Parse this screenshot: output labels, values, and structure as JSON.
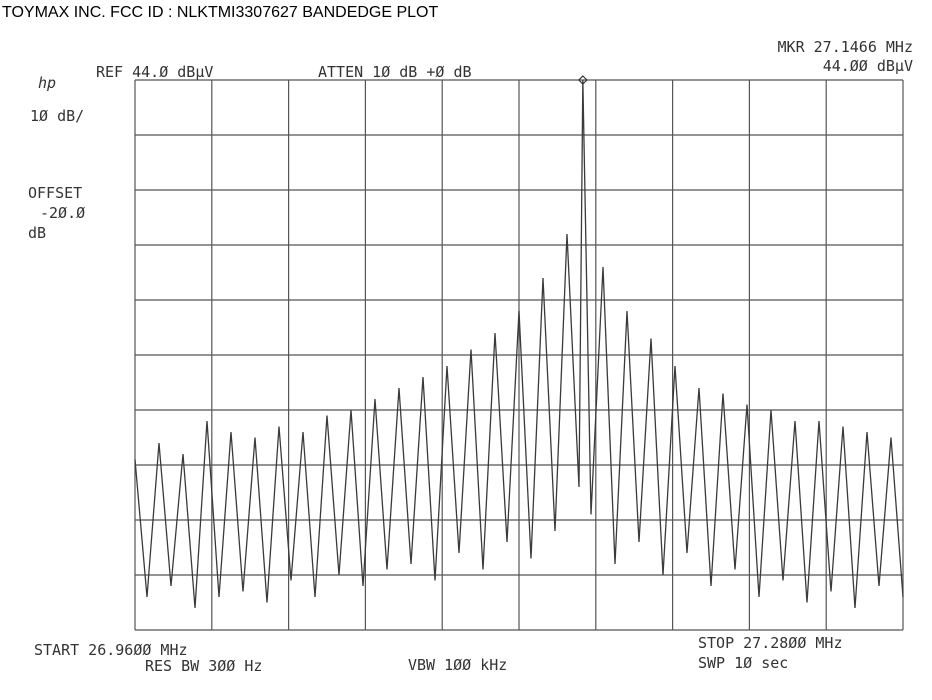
{
  "chart_data": {
    "type": "line",
    "title": "TOYMAX INC. FCC ID : NLKTMI3307627  BANDEDGE PLOT",
    "annotations": {
      "logo": "hp",
      "ref": "REF 44.Ø dBµV",
      "atten": "ATTEN 1Ø dB +Ø dB",
      "scale": "1Ø dB/",
      "offset_title": "OFFSET",
      "offset_value": "-2Ø.Ø",
      "offset_unit": "dB",
      "start": "START 26.96ØØ MHz",
      "stop": "STOP 27.28ØØ MHz",
      "res_bw": "RES BW 3ØØ Hz",
      "vbw": "VBW 1ØØ kHz",
      "sweep": "SWP 1Ø  sec"
    },
    "marker": {
      "x": 27.1466,
      "y": 44,
      "x_label": "MKR 27.1466 MHz",
      "y_label": "44.ØØ dBµV"
    },
    "xlim": [
      26.96,
      27.28
    ],
    "ylim": [
      -56,
      44
    ],
    "xticks": [
      26.96,
      26.992,
      27.024,
      27.056,
      27.088,
      27.12,
      27.152,
      27.184,
      27.216,
      27.248,
      27.28
    ],
    "yticks": [
      -56,
      -46,
      -36,
      -26,
      -16,
      -6,
      4,
      14,
      24,
      34,
      44
    ],
    "grid": true,
    "series": [
      {
        "color": "#3a3a3a",
        "x": [
          26.96,
          26.965,
          26.97,
          26.975,
          26.98,
          26.985,
          26.99,
          26.995,
          27.0,
          27.005,
          27.01,
          27.015,
          27.02,
          27.025,
          27.03,
          27.035,
          27.04,
          27.045,
          27.05,
          27.055,
          27.06,
          27.065,
          27.07,
          27.075,
          27.08,
          27.085,
          27.09,
          27.095,
          27.1,
          27.105,
          27.11,
          27.115,
          27.12,
          27.125,
          27.13,
          27.135,
          27.14,
          27.145,
          27.1466,
          27.15,
          27.155,
          27.16,
          27.165,
          27.17,
          27.175,
          27.18,
          27.185,
          27.19,
          27.195,
          27.2,
          27.205,
          27.21,
          27.215,
          27.22,
          27.225,
          27.23,
          27.235,
          27.24,
          27.245,
          27.25,
          27.255,
          27.26,
          27.265,
          27.27,
          27.275,
          27.28
        ],
        "values": [
          -25,
          -50,
          -22,
          -48,
          -24,
          -52,
          -18,
          -50,
          -20,
          -49,
          -21,
          -51,
          -19,
          -47,
          -20,
          -50,
          -17,
          -46,
          -16,
          -48,
          -14,
          -45,
          -12,
          -44,
          -10,
          -47,
          -8,
          -42,
          -5,
          -45,
          -2,
          -40,
          2,
          -43,
          8,
          -38,
          16,
          -30,
          44,
          -35,
          10,
          -44,
          2,
          -40,
          -3,
          -46,
          -8,
          -42,
          -12,
          -48,
          -13,
          -45,
          -15,
          -50,
          -16,
          -47,
          -18,
          -51,
          -18,
          -49,
          -19,
          -52,
          -20,
          -48,
          -21,
          -50
        ]
      }
    ]
  }
}
